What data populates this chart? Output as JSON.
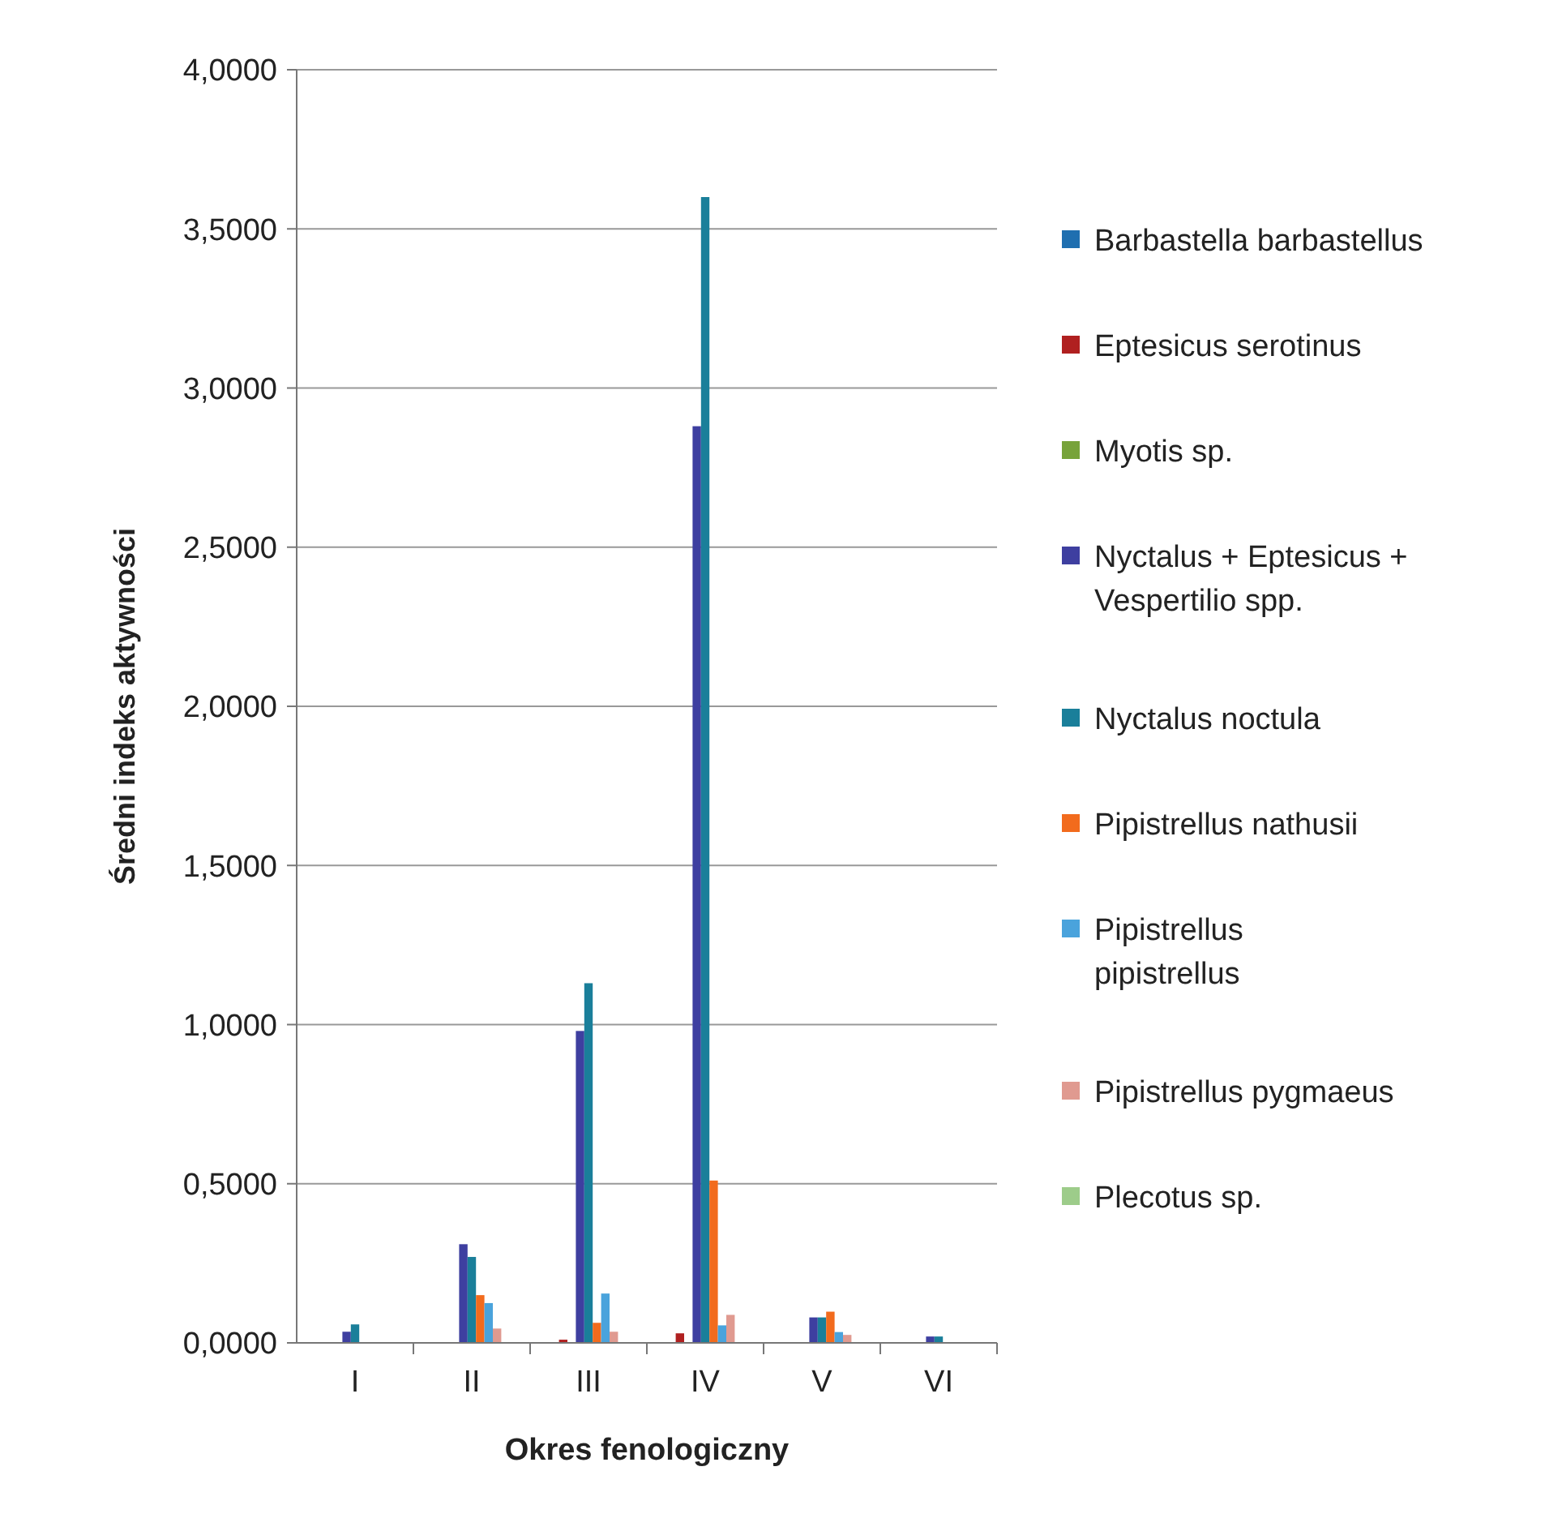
{
  "chart_data": {
    "type": "bar",
    "xlabel": "Okres fenologiczny",
    "ylabel": "Średni indeks aktywności",
    "categories": [
      "I",
      "II",
      "III",
      "IV",
      "V",
      "VI"
    ],
    "ylim": [
      0,
      4
    ],
    "yticks": [
      {
        "value": 0,
        "label": "0,0000"
      },
      {
        "value": 0.5,
        "label": "0,5000"
      },
      {
        "value": 1,
        "label": "1,0000"
      },
      {
        "value": 1.5,
        "label": "1,5000"
      },
      {
        "value": 2,
        "label": "2,0000"
      },
      {
        "value": 2.5,
        "label": "2,5000"
      },
      {
        "value": 3,
        "label": "3,0000"
      },
      {
        "value": 3.5,
        "label": "3,5000"
      },
      {
        "value": 4,
        "label": "4,0000"
      }
    ],
    "grid": "y",
    "legend": "right",
    "series": [
      {
        "name": "Barbastella barbastellus",
        "color": "#1f6fb0",
        "values": [
          0,
          0,
          0,
          0,
          0,
          0
        ]
      },
      {
        "name": "Eptesicus serotinus",
        "color": "#b02020",
        "values": [
          0,
          0,
          0.01,
          0.03,
          0,
          0
        ]
      },
      {
        "name": "Myotis sp.",
        "color": "#77a33a",
        "values": [
          0,
          0,
          0,
          0,
          0,
          0
        ]
      },
      {
        "name": "Nyctalus + Eptesicus + Vespertilio spp.",
        "color": "#3e3fa0",
        "values": [
          0.035,
          0.31,
          0.98,
          2.88,
          0.08,
          0.02
        ]
      },
      {
        "name": "Nyctalus noctula",
        "color": "#1a7f9a",
        "values": [
          0.058,
          0.27,
          1.13,
          3.6,
          0.08,
          0.02
        ]
      },
      {
        "name": "Pipistrellus nathusii",
        "color": "#f26b1d",
        "values": [
          0,
          0.15,
          0.063,
          0.51,
          0.098,
          0
        ]
      },
      {
        "name": "Pipistrellus pipistrellus",
        "color": "#4aa3dc",
        "values": [
          0,
          0.125,
          0.155,
          0.055,
          0.034,
          0
        ]
      },
      {
        "name": "Pipistrellus pygmaeus",
        "color": "#e09a90",
        "values": [
          0,
          0.045,
          0.035,
          0.088,
          0.025,
          0
        ]
      },
      {
        "name": "Plecotus sp.",
        "color": "#9dcc8a",
        "values": [
          0,
          0,
          0,
          0,
          0,
          0
        ]
      }
    ]
  }
}
